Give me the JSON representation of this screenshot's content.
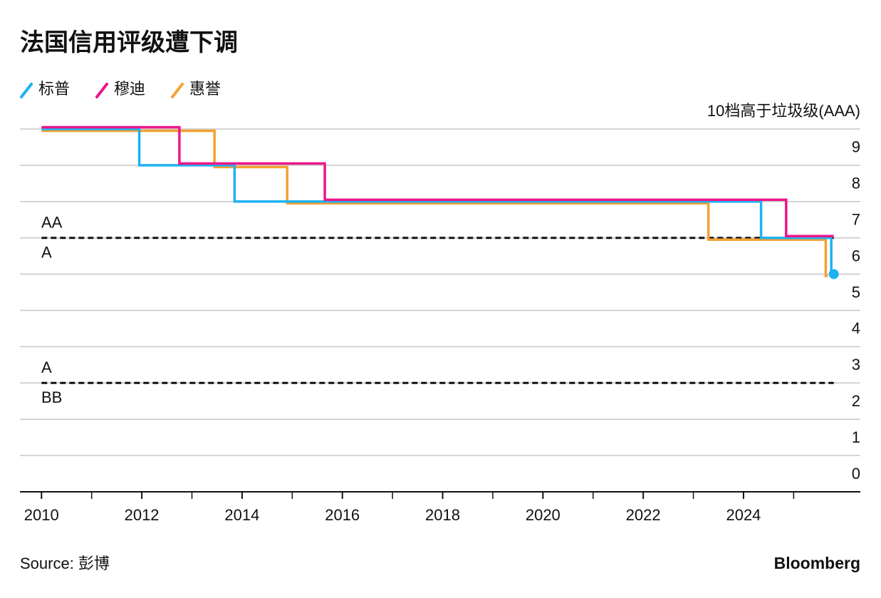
{
  "chart_data": {
    "type": "step-line",
    "title": "法国信用评级遭下调",
    "series": [
      {
        "name": "标普",
        "color": "#1fb1f0",
        "x": [
          2010,
          2011.95,
          2013.85,
          2024.35,
          2025.75,
          2025.8
        ],
        "values": [
          10,
          9,
          8,
          7,
          6,
          6
        ]
      },
      {
        "name": "穆迪",
        "color": "#ec178a",
        "x": [
          2010,
          2012.75,
          2015.65,
          2024.85,
          2025.8
        ],
        "values": [
          10,
          9,
          8,
          7,
          7
        ]
      },
      {
        "name": "惠誉",
        "color": "#f5a133",
        "x": [
          2010,
          2013.45,
          2014.9,
          2023.3,
          2025.64,
          2025.68
        ],
        "values": [
          10,
          9,
          8,
          7,
          6,
          6
        ]
      }
    ],
    "end_marker_series": 0,
    "xlim": [
      2009.57,
      2026.33
    ],
    "xticks": [
      2010,
      2012,
      2014,
      2016,
      2018,
      2020,
      2022,
      2024
    ],
    "xminorticks": [
      2011,
      2013,
      2015,
      2017,
      2019,
      2021,
      2023,
      2025
    ],
    "ylim": [
      0,
      10
    ],
    "yticks": [
      0,
      1,
      2,
      3,
      4,
      5,
      6,
      7,
      8,
      9,
      {
        "value": 10,
        "label": "10档高于垃圾级(AAA)"
      }
    ],
    "grid": true,
    "thresholds": [
      {
        "value": 7,
        "above": "AA",
        "below": "A"
      },
      {
        "value": 3,
        "above": "A",
        "below": "BB"
      }
    ],
    "threshold_xlim": [
      2010,
      2025.8
    ],
    "source": "Source: 彭博",
    "brand": "Bloomberg"
  }
}
